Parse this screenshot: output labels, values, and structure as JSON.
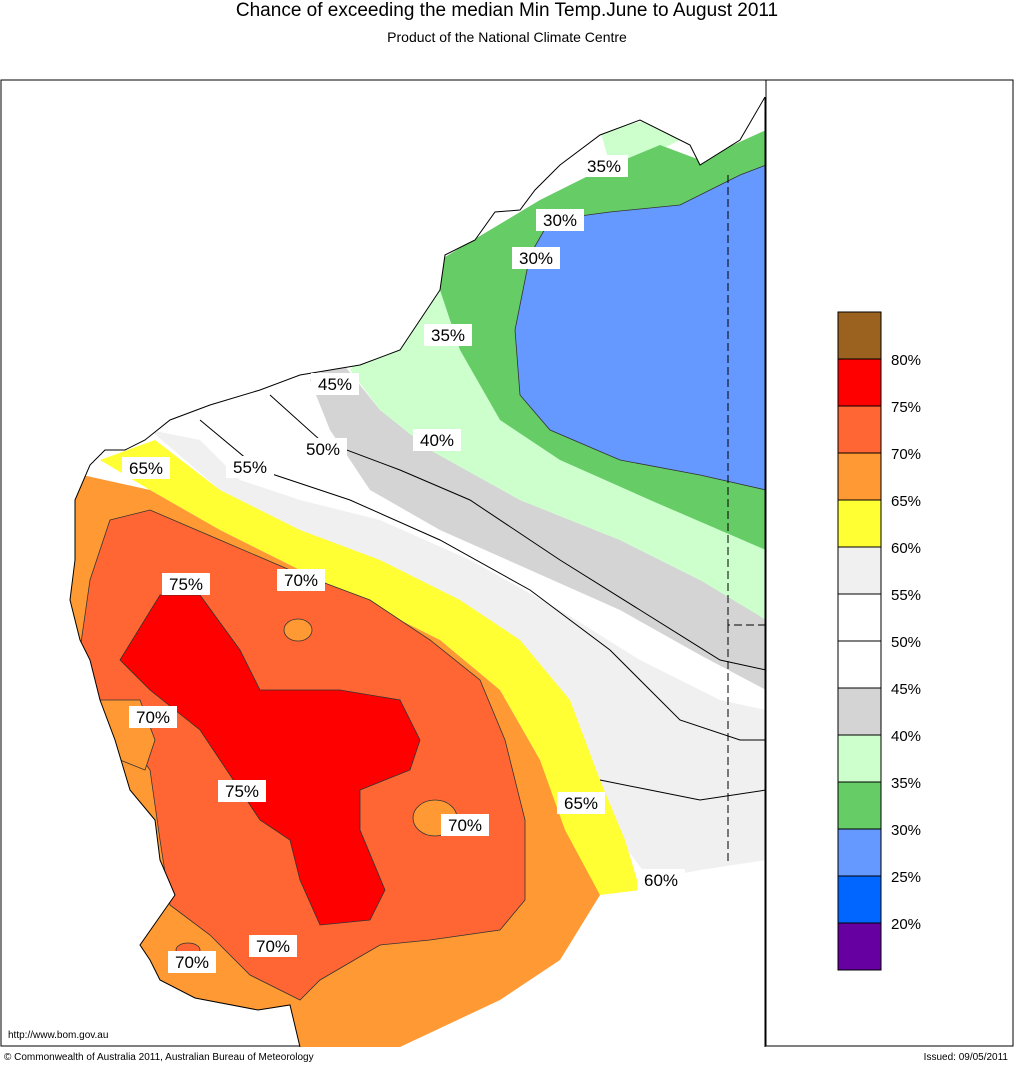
{
  "header": {
    "title": "Chance of exceeding the median Min Temp.June to August 2011",
    "subtitle": "Product of the National Climate Centre"
  },
  "footer": {
    "url": "http://www.bom.gov.au",
    "copyright": "© Commonwealth of Australia 2011, Australian Bureau of Meteorology",
    "issued": "Issued: 09/05/2011"
  },
  "legend": {
    "classes": [
      {
        "color": "#9b621f"
      },
      {
        "color": "#ff0000",
        "label": "80%"
      },
      {
        "color": "#ff6633",
        "label": "75%"
      },
      {
        "color": "#ff9933",
        "label": "70%"
      },
      {
        "color": "#ffff33",
        "label": "65%"
      },
      {
        "color": "#f0f0f0",
        "label": "60%"
      },
      {
        "color": "#ffffff",
        "label": "55%"
      },
      {
        "color": "#ffffff",
        "label": "50%"
      },
      {
        "color": "#d4d4d4",
        "label": "45%"
      },
      {
        "color": "#ccffcc",
        "label": "40%"
      },
      {
        "color": "#66cc66",
        "label": "35%"
      },
      {
        "color": "#6699ff",
        "label": "30%"
      },
      {
        "color": "#0066ff",
        "label": "25%"
      },
      {
        "color": "#6600a0",
        "label": "20%"
      }
    ]
  },
  "map_labels": {
    "l35a": "35%",
    "l30a": "30%",
    "l30b": "30%",
    "l35b": "35%",
    "l45": "45%",
    "l40": "40%",
    "l50": "50%",
    "l55": "55%",
    "l65a": "65%",
    "l70a": "70%",
    "l75a": "75%",
    "l70b": "70%",
    "l75b": "75%",
    "l70c": "70%",
    "l65b": "65%",
    "l60": "60%",
    "l70d": "70%",
    "l70e": "70%"
  }
}
